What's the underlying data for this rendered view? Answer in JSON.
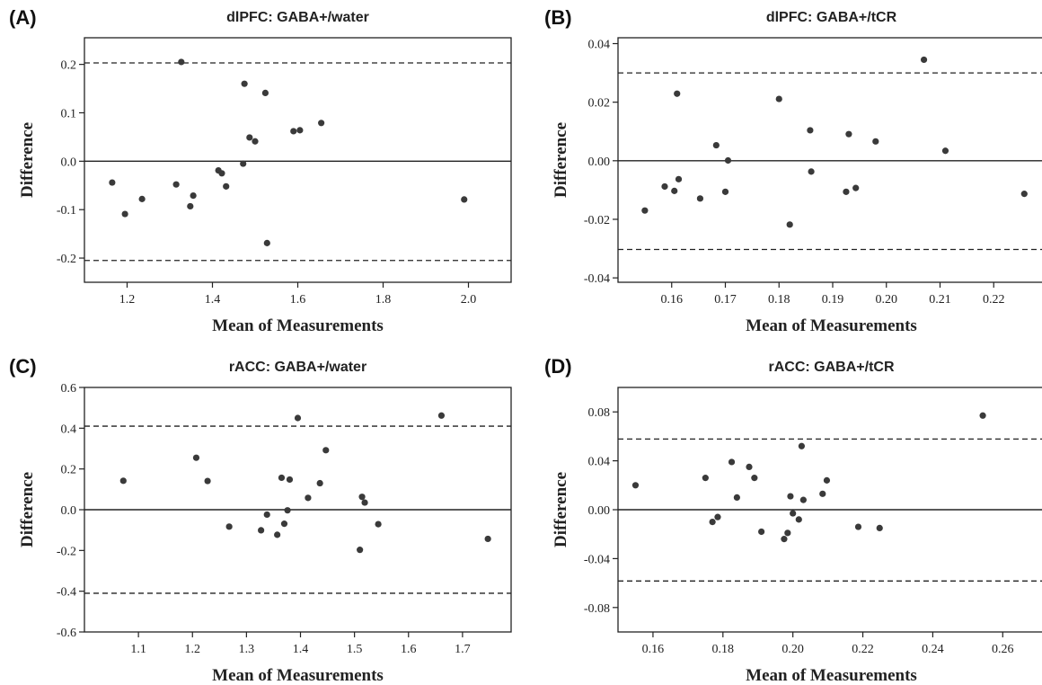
{
  "chart_data": [
    {
      "type": "scatter",
      "panel_label": "(A)",
      "title": "dlPFC: GABA+/water",
      "xlabel": "Mean of Measurements",
      "ylabel": "Difference",
      "xlim": [
        1.1,
        2.1
      ],
      "ylim": [
        -0.25,
        0.255
      ],
      "xticks": [
        1.2,
        1.4,
        1.6,
        1.8,
        2.0
      ],
      "xtick_labels": [
        "1.2",
        "1.4",
        "1.6",
        "1.8",
        "2.0"
      ],
      "yticks": [
        -0.2,
        -0.1,
        0.0,
        0.1,
        0.2
      ],
      "ytick_labels": [
        "-0.2",
        "-0.1",
        "0.0",
        "0.1",
        "0.2"
      ],
      "mean_line": 0.0,
      "limits_of_agreement": [
        0.203,
        -0.205
      ],
      "grid": false,
      "points": [
        {
          "x": 1.165,
          "y": -0.044
        },
        {
          "x": 1.195,
          "y": -0.109
        },
        {
          "x": 1.235,
          "y": -0.078
        },
        {
          "x": 1.315,
          "y": -0.048
        },
        {
          "x": 1.327,
          "y": 0.205
        },
        {
          "x": 1.348,
          "y": -0.093
        },
        {
          "x": 1.355,
          "y": -0.071
        },
        {
          "x": 1.414,
          "y": -0.019
        },
        {
          "x": 1.422,
          "y": -0.025
        },
        {
          "x": 1.432,
          "y": -0.052
        },
        {
          "x": 1.472,
          "y": -0.005
        },
        {
          "x": 1.475,
          "y": 0.16
        },
        {
          "x": 1.487,
          "y": 0.049
        },
        {
          "x": 1.5,
          "y": 0.041
        },
        {
          "x": 1.524,
          "y": 0.141
        },
        {
          "x": 1.528,
          "y": -0.169
        },
        {
          "x": 1.59,
          "y": 0.062
        },
        {
          "x": 1.605,
          "y": 0.064
        },
        {
          "x": 1.655,
          "y": 0.079
        },
        {
          "x": 1.99,
          "y": -0.079
        }
      ]
    },
    {
      "type": "scatter",
      "panel_label": "(B)",
      "title": "dlPFC: GABA+/tCR",
      "xlabel": "Mean of Measurements",
      "ylabel": "Difference",
      "xlim": [
        0.15,
        0.2295
      ],
      "ylim": [
        -0.0415,
        0.042
      ],
      "xticks": [
        0.16,
        0.17,
        0.18,
        0.19,
        0.2,
        0.21,
        0.22
      ],
      "xtick_labels": [
        "0.16",
        "0.17",
        "0.18",
        "0.19",
        "0.20",
        "0.21",
        "0.22"
      ],
      "yticks": [
        -0.04,
        -0.02,
        0.0,
        0.02,
        0.04
      ],
      "ytick_labels": [
        "-0.04",
        "-0.02",
        "0.00",
        "0.02",
        "0.04"
      ],
      "mean_line": 0.0,
      "limits_of_agreement": [
        0.03,
        -0.0303
      ],
      "grid": false,
      "points": [
        {
          "x": 0.155,
          "y": -0.017
        },
        {
          "x": 0.1587,
          "y": -0.0088
        },
        {
          "x": 0.1605,
          "y": -0.0103
        },
        {
          "x": 0.161,
          "y": 0.0229
        },
        {
          "x": 0.1613,
          "y": -0.0063
        },
        {
          "x": 0.1653,
          "y": -0.0129
        },
        {
          "x": 0.1683,
          "y": 0.0053
        },
        {
          "x": 0.17,
          "y": -0.0106
        },
        {
          "x": 0.1705,
          "y": 0.0001
        },
        {
          "x": 0.18,
          "y": 0.0211
        },
        {
          "x": 0.182,
          "y": -0.0218
        },
        {
          "x": 0.1858,
          "y": 0.0104
        },
        {
          "x": 0.186,
          "y": -0.0037
        },
        {
          "x": 0.1925,
          "y": -0.0106
        },
        {
          "x": 0.193,
          "y": 0.0091
        },
        {
          "x": 0.1943,
          "y": -0.0093
        },
        {
          "x": 0.198,
          "y": 0.0066
        },
        {
          "x": 0.207,
          "y": 0.0345
        },
        {
          "x": 0.211,
          "y": 0.0034
        },
        {
          "x": 0.2257,
          "y": -0.0113
        }
      ]
    },
    {
      "type": "scatter",
      "panel_label": "(C)",
      "title": "rACC: GABA+/water",
      "xlabel": "Mean of Measurements",
      "ylabel": "Difference",
      "xlim": [
        1.0,
        1.79
      ],
      "ylim": [
        -0.6,
        0.6
      ],
      "xticks": [
        1.1,
        1.2,
        1.3,
        1.4,
        1.5,
        1.6,
        1.7
      ],
      "xtick_labels": [
        "1.1",
        "1.2",
        "1.3",
        "1.4",
        "1.5",
        "1.6",
        "1.7"
      ],
      "yticks": [
        -0.6,
        -0.4,
        -0.2,
        0.0,
        0.2,
        0.4,
        0.6
      ],
      "ytick_labels": [
        "-0.6",
        "-0.4",
        "-0.2",
        "0.0",
        "0.2",
        "0.4",
        "0.6"
      ],
      "mean_line": 0.0,
      "limits_of_agreement": [
        0.41,
        -0.41
      ],
      "grid": false,
      "points": [
        {
          "x": 1.072,
          "y": 0.142
        },
        {
          "x": 1.207,
          "y": 0.255
        },
        {
          "x": 1.228,
          "y": 0.141
        },
        {
          "x": 1.268,
          "y": -0.083
        },
        {
          "x": 1.327,
          "y": -0.101
        },
        {
          "x": 1.338,
          "y": -0.024
        },
        {
          "x": 1.357,
          "y": -0.123
        },
        {
          "x": 1.365,
          "y": 0.157
        },
        {
          "x": 1.37,
          "y": -0.069
        },
        {
          "x": 1.376,
          "y": -0.003
        },
        {
          "x": 1.38,
          "y": 0.148
        },
        {
          "x": 1.395,
          "y": 0.45
        },
        {
          "x": 1.414,
          "y": 0.058
        },
        {
          "x": 1.436,
          "y": 0.13
        },
        {
          "x": 1.447,
          "y": 0.292
        },
        {
          "x": 1.51,
          "y": -0.197
        },
        {
          "x": 1.514,
          "y": 0.063
        },
        {
          "x": 1.519,
          "y": 0.035
        },
        {
          "x": 1.544,
          "y": -0.071
        },
        {
          "x": 1.661,
          "y": 0.462
        },
        {
          "x": 1.747,
          "y": -0.143
        }
      ]
    },
    {
      "type": "scatter",
      "panel_label": "(D)",
      "title": "rACC: GABA+/tCR",
      "xlabel": "Mean of Measurements",
      "ylabel": "Difference",
      "xlim": [
        0.15,
        0.272
      ],
      "ylim": [
        -0.1,
        0.1
      ],
      "xticks": [
        0.16,
        0.18,
        0.2,
        0.22,
        0.24,
        0.26
      ],
      "xtick_labels": [
        "0.16",
        "0.18",
        "0.20",
        "0.22",
        "0.24",
        "0.26"
      ],
      "yticks": [
        -0.08,
        -0.04,
        0.0,
        0.04,
        0.08
      ],
      "ytick_labels": [
        "-0.08",
        "-0.04",
        "0.00",
        "0.04",
        "0.08"
      ],
      "mean_line": 0.0,
      "limits_of_agreement": [
        0.0578,
        -0.0583
      ],
      "grid": false,
      "points": [
        {
          "x": 0.155,
          "y": 0.02
        },
        {
          "x": 0.175,
          "y": 0.026
        },
        {
          "x": 0.177,
          "y": -0.01
        },
        {
          "x": 0.1785,
          "y": -0.006
        },
        {
          "x": 0.1825,
          "y": 0.039
        },
        {
          "x": 0.184,
          "y": 0.01
        },
        {
          "x": 0.1875,
          "y": 0.035
        },
        {
          "x": 0.189,
          "y": 0.026
        },
        {
          "x": 0.191,
          "y": -0.018
        },
        {
          "x": 0.1975,
          "y": -0.024
        },
        {
          "x": 0.1985,
          "y": -0.019
        },
        {
          "x": 0.1993,
          "y": 0.011
        },
        {
          "x": 0.2,
          "y": -0.003
        },
        {
          "x": 0.2017,
          "y": -0.008
        },
        {
          "x": 0.2025,
          "y": 0.052
        },
        {
          "x": 0.203,
          "y": 0.008
        },
        {
          "x": 0.2085,
          "y": 0.013
        },
        {
          "x": 0.2097,
          "y": 0.024
        },
        {
          "x": 0.2187,
          "y": -0.014
        },
        {
          "x": 0.2248,
          "y": -0.015
        },
        {
          "x": 0.2543,
          "y": 0.077
        }
      ]
    }
  ],
  "colors": {
    "axis": "#222222",
    "point": "#3a3a3a",
    "line": "#222222"
  }
}
